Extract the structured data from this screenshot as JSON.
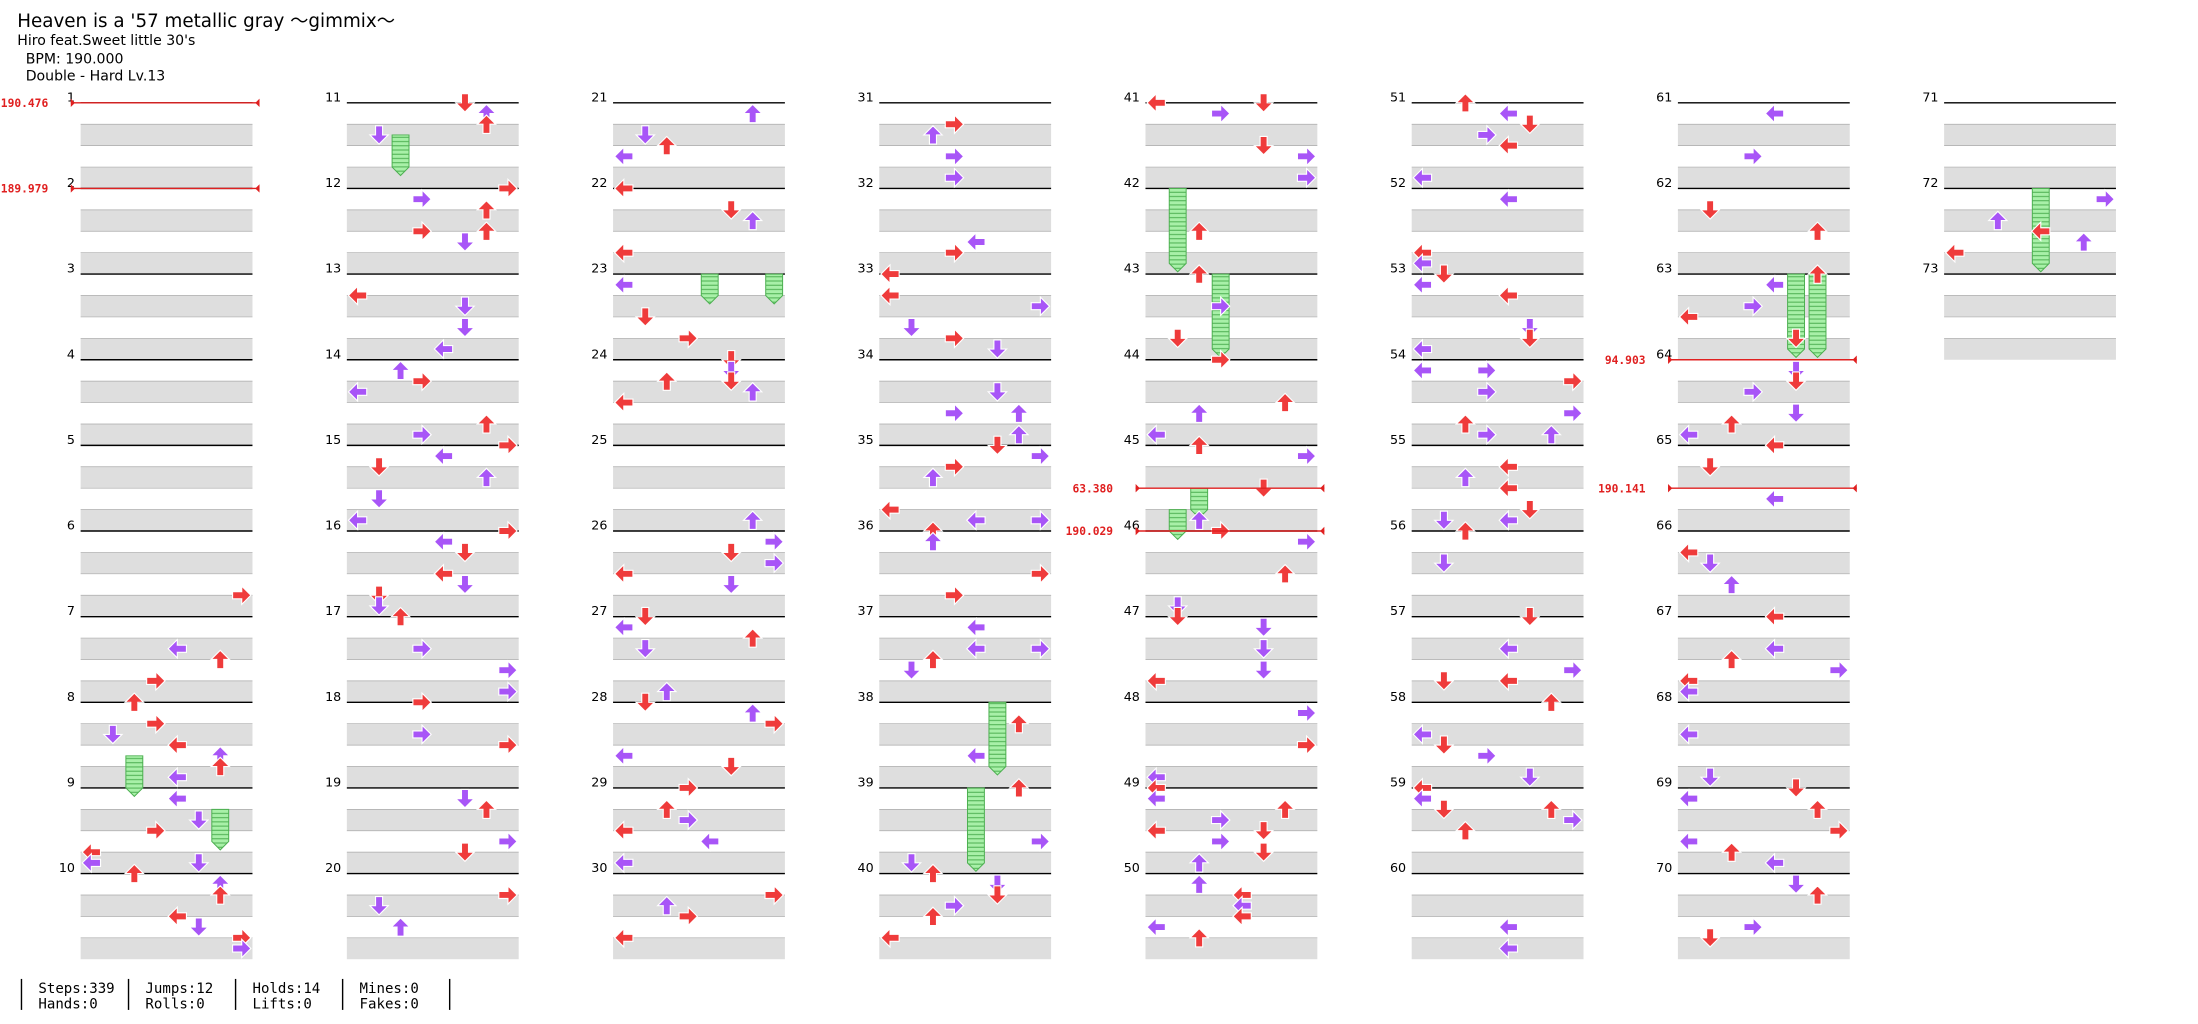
{
  "header": {
    "title": "Heaven is a '57 metallic gray ～gimmix～",
    "artist": "Hiro feat.Sweet little 30's",
    "bpm": "BPM: 190.000",
    "difficulty": "Double - Hard Lv.13"
  },
  "measures": [
    1,
    2,
    3,
    4,
    5,
    6,
    7,
    8,
    9,
    10,
    11,
    12,
    13,
    14,
    15,
    16,
    17,
    18,
    19,
    20,
    21,
    22,
    23,
    24,
    25,
    26,
    27,
    28,
    29,
    30,
    31,
    32,
    33,
    34,
    35,
    36,
    37,
    38,
    39,
    40,
    41,
    42,
    43,
    44,
    45,
    46,
    47,
    48,
    49,
    50,
    51,
    52,
    53,
    54,
    55,
    56,
    57,
    58,
    59,
    60,
    61,
    62,
    63,
    64,
    65,
    66,
    67,
    68,
    69,
    70,
    71,
    72,
    73
  ],
  "bpm_changes": [
    {
      "label": "190.476",
      "measure": 1,
      "beat": 0
    },
    {
      "label": "189.979",
      "measure": 2,
      "beat": 0
    },
    {
      "label": "63.380",
      "measure": 45,
      "beat": 2
    },
    {
      "label": "190.029",
      "measure": 46,
      "beat": 0
    },
    {
      "label": "94.903",
      "measure": 64,
      "beat": 0
    },
    {
      "label": "190.141",
      "measure": 65,
      "beat": 2
    }
  ],
  "stats": [
    [
      "Steps:339",
      "Hands:0"
    ],
    [
      "Jumps:12",
      "Rolls:0"
    ],
    [
      "Holds:14",
      "Lifts:0"
    ],
    [
      "Mines:0",
      "Fakes:0"
    ]
  ]
}
